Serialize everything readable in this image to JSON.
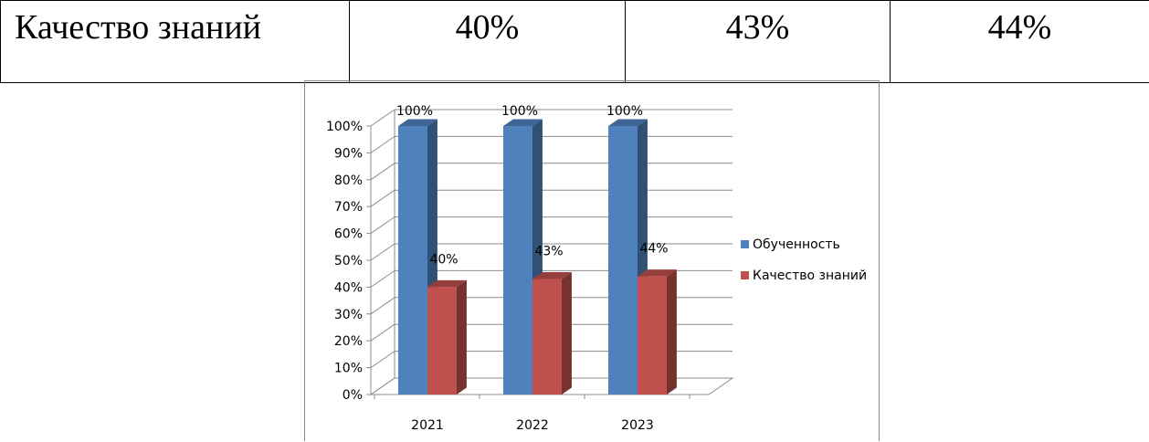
{
  "table": {
    "row_label": "Качество знаний",
    "values": [
      "40%",
      "43%",
      "44%"
    ]
  },
  "chart_data": {
    "type": "bar",
    "categories": [
      "2021",
      "2022",
      "2023"
    ],
    "series": [
      {
        "name": "Обученность",
        "values": [
          100,
          100,
          100
        ],
        "labels": [
          "100%",
          "100%",
          "100%"
        ],
        "color": "#4F81BD"
      },
      {
        "name": "Качество знаний",
        "values": [
          40,
          43,
          44
        ],
        "labels": [
          "40%",
          "43%",
          "44%"
        ],
        "color": "#C0504D"
      }
    ],
    "ylim": [
      0,
      100
    ],
    "yticks": [
      "0%",
      "10%",
      "20%",
      "30%",
      "40%",
      "50%",
      "60%",
      "70%",
      "80%",
      "90%",
      "100%"
    ],
    "grid": true,
    "legend": "right",
    "style": "3d-column"
  }
}
